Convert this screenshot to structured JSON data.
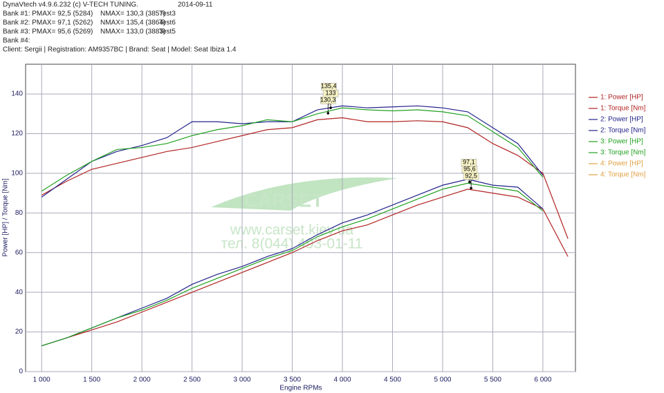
{
  "header": {
    "lines": [
      [
        "DynaVtech v4.9.6.232 (c) V-TECH TUNING.",
        "2014-09-11"
      ],
      [
        "Bank #1: PMAX= 92,5 (5284)",
        "NMAX= 130,3 (3857)",
        "Test3"
      ],
      [
        "Bank #2: PMAX= 97,1 (5262)",
        "NMAX= 135,4 (3864)",
        "Test6"
      ],
      [
        "Bank #3: PMAX= 95,6 (5269)",
        "NMAX= 133,0 (3883)",
        "Test5"
      ],
      [
        "Bank #4:"
      ],
      [
        "Client: Sergii | Registration: AM9357BC | Brand: Seat | Model: Seat Ibiza 1.4"
      ]
    ]
  },
  "watermark": {
    "brand": "CARSET",
    "url": "www.carset.kiev.ua",
    "phone": "тел. 8(044) 493-01-11"
  },
  "chart_data": {
    "type": "line",
    "xlabel": "Engine RPMs",
    "ylabel": "Power [HP] / Torque [Nm]",
    "x": [
      1000,
      1250,
      1500,
      1750,
      2000,
      2250,
      2500,
      2750,
      3000,
      3250,
      3500,
      3750,
      4000,
      4250,
      4500,
      4750,
      5000,
      5250,
      5500,
      5750,
      6000,
      6250
    ],
    "series": [
      {
        "name": "1: Power [HP]",
        "color": "#b22222",
        "values": [
          13,
          17,
          21,
          25,
          30,
          35,
          40,
          45,
          50,
          55,
          60,
          66,
          71,
          74,
          79,
          84,
          88,
          92,
          90,
          88,
          82,
          58
        ]
      },
      {
        "name": "1: Torque [Nm]",
        "color": "#b22222",
        "values": [
          89,
          96,
          102,
          105,
          108,
          111,
          113,
          116,
          119,
          122,
          123,
          127,
          128,
          126,
          126,
          126.5,
          126,
          123,
          115,
          109,
          100,
          67
        ]
      },
      {
        "name": "2: Power [HP]",
        "color": "#22228b",
        "values": [
          13,
          17,
          22,
          27,
          32,
          37,
          44,
          49,
          53,
          58,
          62,
          69,
          75,
          79,
          84,
          89,
          94,
          97,
          94,
          93,
          82,
          null
        ]
      },
      {
        "name": "2: Torque [Nm]",
        "color": "#22228b",
        "values": [
          88,
          97,
          106,
          111,
          114,
          118,
          126,
          126,
          125,
          126,
          126,
          132,
          134,
          133,
          133.5,
          134,
          133,
          131,
          123,
          115,
          99,
          null
        ]
      },
      {
        "name": "3: Power [HP]",
        "color": "#22a022",
        "values": [
          13,
          17,
          22,
          27,
          31,
          36,
          42,
          47,
          52,
          57,
          61,
          68,
          73,
          77,
          82,
          87,
          92,
          95,
          93,
          91,
          81,
          null
        ]
      },
      {
        "name": "3: Torque [Nm]",
        "color": "#22a022",
        "values": [
          91,
          99,
          106,
          112,
          113,
          115,
          119,
          122,
          124,
          127,
          126,
          130,
          133,
          132,
          131.5,
          132,
          131,
          129,
          121,
          113,
          98,
          null
        ]
      },
      {
        "name": "4: Power [HP]",
        "color": "#e0a040",
        "values": [
          null,
          null,
          null,
          null,
          null,
          null,
          null,
          null,
          null,
          null,
          null,
          null,
          null,
          null,
          null,
          null,
          null,
          null,
          null,
          null,
          null,
          null
        ]
      },
      {
        "name": "4: Torque [Nm]",
        "color": "#e0a040",
        "values": [
          null,
          null,
          null,
          null,
          null,
          null,
          null,
          null,
          null,
          null,
          null,
          null,
          null,
          null,
          null,
          null,
          null,
          null,
          null,
          null,
          null,
          null
        ]
      }
    ],
    "annotations": [
      {
        "x": 3864,
        "y": 135.4,
        "label": "135,4"
      },
      {
        "x": 3883,
        "y": 133,
        "label": "133"
      },
      {
        "x": 3857,
        "y": 130.3,
        "label": "130,3"
      },
      {
        "x": 5262,
        "y": 97.1,
        "label": "97,1"
      },
      {
        "x": 5269,
        "y": 95.6,
        "label": "95,6"
      },
      {
        "x": 5284,
        "y": 92.5,
        "label": "92,5"
      }
    ],
    "xlim": [
      840,
      6325
    ],
    "ylim": [
      0,
      155
    ],
    "xticks": [
      {
        "value": 1000,
        "label": "1 000"
      },
      {
        "value": 1500,
        "label": "1 500"
      },
      {
        "value": 2000,
        "label": "2 000"
      },
      {
        "value": 2500,
        "label": "2 500"
      },
      {
        "value": 3000,
        "label": "3 000"
      },
      {
        "value": 3500,
        "label": "3 500"
      },
      {
        "value": 4000,
        "label": "4 000"
      },
      {
        "value": 4500,
        "label": "4 500"
      },
      {
        "value": 5000,
        "label": "5 000"
      },
      {
        "value": 5500,
        "label": "5 500"
      },
      {
        "value": 6000,
        "label": "6 000"
      }
    ],
    "yticks": [
      0,
      20,
      40,
      60,
      80,
      100,
      120,
      140
    ],
    "grid": true,
    "legend": "right"
  }
}
